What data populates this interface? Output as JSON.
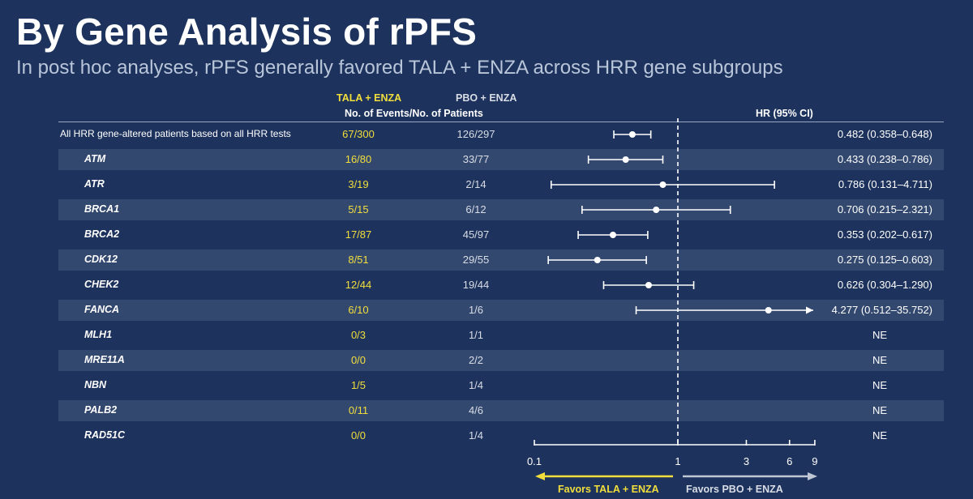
{
  "title": "By Gene Analysis of rPFS",
  "subtitle": "In post hoc analyses, rPFS generally favored TALA + ENZA across HRR gene subgroups",
  "headers": {
    "tala_arm": "TALA + ENZA",
    "pbo_arm": "PBO + ENZA",
    "events": "No. of Events/No. of Patients",
    "hr": "HR (95% CI)"
  },
  "chart_data": {
    "type": "forest",
    "x_scale": "log",
    "xlim": [
      0.1,
      9
    ],
    "reference_line": 1,
    "x_ticks": [
      "0.1",
      "1",
      "3",
      "6",
      "9"
    ],
    "x_tick_values": [
      0.1,
      1,
      3,
      6,
      9
    ],
    "legend_left": "Favors TALA + ENZA",
    "legend_right": "Favors PBO + ENZA",
    "colors": {
      "tala": "#f2df3c",
      "pbo": "#d8dde6",
      "shade": "#33486f"
    },
    "rows": [
      {
        "label": "All HRR gene-altered patients based on all HRR tests",
        "tala": "67/300",
        "pbo": "126/297",
        "hr_text": "0.482 (0.358–0.648)",
        "hr": 0.482,
        "lo": 0.358,
        "hi": 0.648
      },
      {
        "label": "ATM",
        "tala": "16/80",
        "pbo": "33/77",
        "hr_text": "0.433 (0.238–0.786)",
        "hr": 0.433,
        "lo": 0.238,
        "hi": 0.786
      },
      {
        "label": "ATR",
        "tala": "3/19",
        "pbo": "2/14",
        "hr_text": "0.786 (0.131–4.711)",
        "hr": 0.786,
        "lo": 0.131,
        "hi": 4.711
      },
      {
        "label": "BRCA1",
        "tala": "5/15",
        "pbo": "6/12",
        "hr_text": "0.706 (0.215–2.321)",
        "hr": 0.706,
        "lo": 0.215,
        "hi": 2.321
      },
      {
        "label": "BRCA2",
        "tala": "17/87",
        "pbo": "45/97",
        "hr_text": "0.353 (0.202–0.617)",
        "hr": 0.353,
        "lo": 0.202,
        "hi": 0.617
      },
      {
        "label": "CDK12",
        "tala": "8/51",
        "pbo": "29/55",
        "hr_text": "0.275 (0.125–0.603)",
        "hr": 0.275,
        "lo": 0.125,
        "hi": 0.603
      },
      {
        "label": "CHEK2",
        "tala": "12/44",
        "pbo": "19/44",
        "hr_text": "0.626 (0.304–1.290)",
        "hr": 0.626,
        "lo": 0.304,
        "hi": 1.29
      },
      {
        "label": "FANCA",
        "tala": "6/10",
        "pbo": "1/6",
        "hr_text": "4.277 (0.512–35.752)",
        "hr": 4.277,
        "lo": 0.512,
        "hi": 35.752,
        "arrow": true
      },
      {
        "label": "MLH1",
        "tala": "0/3",
        "pbo": "1/1",
        "hr_text": "NE"
      },
      {
        "label": "MRE11A",
        "tala": "0/0",
        "pbo": "2/2",
        "hr_text": "NE"
      },
      {
        "label": "NBN",
        "tala": "1/5",
        "pbo": "1/4",
        "hr_text": "NE"
      },
      {
        "label": "PALB2",
        "tala": "0/11",
        "pbo": "4/6",
        "hr_text": "NE"
      },
      {
        "label": "RAD51C",
        "tala": "0/0",
        "pbo": "1/4",
        "hr_text": "NE"
      }
    ]
  }
}
